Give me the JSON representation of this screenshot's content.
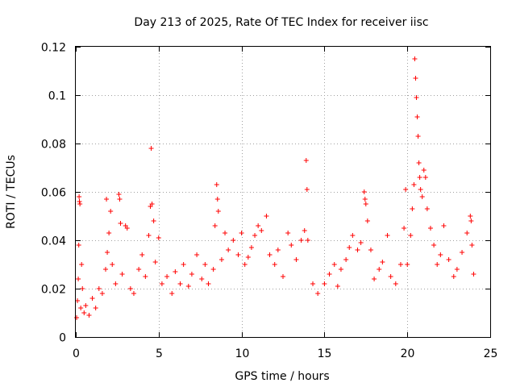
{
  "chart_data": {
    "type": "scatter",
    "title": "Day 213 of 2025, Rate Of TEC Index for receiver iisc",
    "xlabel": "GPS time / hours",
    "ylabel": "ROTI / TECUs",
    "xlim": [
      0,
      25
    ],
    "ylim": [
      0,
      0.12
    ],
    "xticks": [
      0,
      5,
      10,
      15,
      20,
      25
    ],
    "xtick_labels": [
      "0",
      "5",
      "10",
      "15",
      "20",
      "25"
    ],
    "yticks": [
      0,
      0.02,
      0.04,
      0.06,
      0.08,
      0.1,
      0.12
    ],
    "ytick_labels": [
      "0",
      "0.02",
      "0.04",
      "0.06",
      "0.08",
      "0.1",
      "0.12"
    ],
    "grid": true,
    "marker": "+",
    "color": "#ff0000",
    "series": [
      {
        "name": "ROTI",
        "points": [
          [
            0.05,
            0.008
          ],
          [
            0.1,
            0.015
          ],
          [
            0.15,
            0.024
          ],
          [
            0.18,
            0.038
          ],
          [
            0.2,
            0.058
          ],
          [
            0.22,
            0.056
          ],
          [
            0.25,
            0.055
          ],
          [
            0.3,
            0.012
          ],
          [
            0.35,
            0.03
          ],
          [
            0.4,
            0.02
          ],
          [
            0.5,
            0.01
          ],
          [
            0.6,
            0.013
          ],
          [
            0.8,
            0.009
          ],
          [
            1.0,
            0.016
          ],
          [
            1.2,
            0.012
          ],
          [
            1.4,
            0.02
          ],
          [
            1.6,
            0.018
          ],
          [
            1.8,
            0.028
          ],
          [
            1.85,
            0.057
          ],
          [
            1.9,
            0.035
          ],
          [
            2.0,
            0.043
          ],
          [
            2.1,
            0.052
          ],
          [
            2.2,
            0.03
          ],
          [
            2.4,
            0.022
          ],
          [
            2.6,
            0.059
          ],
          [
            2.65,
            0.057
          ],
          [
            2.7,
            0.047
          ],
          [
            2.8,
            0.026
          ],
          [
            3.0,
            0.046
          ],
          [
            3.1,
            0.045
          ],
          [
            3.3,
            0.02
          ],
          [
            3.5,
            0.018
          ],
          [
            3.8,
            0.028
          ],
          [
            4.0,
            0.034
          ],
          [
            4.2,
            0.025
          ],
          [
            4.4,
            0.042
          ],
          [
            4.5,
            0.054
          ],
          [
            4.55,
            0.078
          ],
          [
            4.6,
            0.055
          ],
          [
            4.7,
            0.048
          ],
          [
            4.8,
            0.031
          ],
          [
            5.0,
            0.041
          ],
          [
            5.2,
            0.022
          ],
          [
            5.5,
            0.025
          ],
          [
            5.8,
            0.018
          ],
          [
            6.0,
            0.027
          ],
          [
            6.3,
            0.022
          ],
          [
            6.5,
            0.03
          ],
          [
            6.8,
            0.021
          ],
          [
            7.0,
            0.026
          ],
          [
            7.3,
            0.034
          ],
          [
            7.6,
            0.024
          ],
          [
            7.8,
            0.03
          ],
          [
            8.0,
            0.022
          ],
          [
            8.3,
            0.028
          ],
          [
            8.4,
            0.046
          ],
          [
            8.5,
            0.063
          ],
          [
            8.55,
            0.057
          ],
          [
            8.6,
            0.052
          ],
          [
            8.8,
            0.032
          ],
          [
            9.0,
            0.043
          ],
          [
            9.2,
            0.036
          ],
          [
            9.5,
            0.04
          ],
          [
            9.8,
            0.034
          ],
          [
            10.0,
            0.043
          ],
          [
            10.2,
            0.03
          ],
          [
            10.4,
            0.033
          ],
          [
            10.6,
            0.037
          ],
          [
            10.8,
            0.042
          ],
          [
            11.0,
            0.046
          ],
          [
            11.2,
            0.044
          ],
          [
            11.5,
            0.05
          ],
          [
            11.7,
            0.034
          ],
          [
            12.0,
            0.03
          ],
          [
            12.2,
            0.036
          ],
          [
            12.5,
            0.025
          ],
          [
            12.8,
            0.043
          ],
          [
            13.0,
            0.038
          ],
          [
            13.3,
            0.032
          ],
          [
            13.6,
            0.04
          ],
          [
            13.8,
            0.044
          ],
          [
            13.9,
            0.073
          ],
          [
            13.95,
            0.061
          ],
          [
            14.0,
            0.04
          ],
          [
            14.3,
            0.022
          ],
          [
            14.6,
            0.018
          ],
          [
            15.0,
            0.022
          ],
          [
            15.3,
            0.026
          ],
          [
            15.6,
            0.03
          ],
          [
            15.8,
            0.021
          ],
          [
            16.0,
            0.028
          ],
          [
            16.3,
            0.032
          ],
          [
            16.5,
            0.037
          ],
          [
            16.7,
            0.042
          ],
          [
            17.0,
            0.036
          ],
          [
            17.2,
            0.039
          ],
          [
            17.4,
            0.06
          ],
          [
            17.45,
            0.057
          ],
          [
            17.5,
            0.055
          ],
          [
            17.6,
            0.048
          ],
          [
            17.8,
            0.036
          ],
          [
            18.0,
            0.024
          ],
          [
            18.3,
            0.028
          ],
          [
            18.5,
            0.031
          ],
          [
            18.8,
            0.042
          ],
          [
            19.0,
            0.025
          ],
          [
            19.3,
            0.022
          ],
          [
            19.6,
            0.03
          ],
          [
            19.8,
            0.045
          ],
          [
            19.9,
            0.061
          ],
          [
            20.0,
            0.03
          ],
          [
            20.2,
            0.042
          ],
          [
            20.3,
            0.053
          ],
          [
            20.4,
            0.063
          ],
          [
            20.45,
            0.115
          ],
          [
            20.5,
            0.107
          ],
          [
            20.55,
            0.099
          ],
          [
            20.6,
            0.091
          ],
          [
            20.65,
            0.083
          ],
          [
            20.7,
            0.072
          ],
          [
            20.75,
            0.066
          ],
          [
            20.8,
            0.061
          ],
          [
            20.9,
            0.058
          ],
          [
            21.0,
            0.069
          ],
          [
            21.1,
            0.066
          ],
          [
            21.2,
            0.053
          ],
          [
            21.4,
            0.045
          ],
          [
            21.6,
            0.038
          ],
          [
            21.8,
            0.03
          ],
          [
            22.0,
            0.034
          ],
          [
            22.2,
            0.046
          ],
          [
            22.5,
            0.032
          ],
          [
            22.8,
            0.025
          ],
          [
            23.0,
            0.028
          ],
          [
            23.3,
            0.035
          ],
          [
            23.6,
            0.043
          ],
          [
            23.8,
            0.05
          ],
          [
            23.85,
            0.048
          ],
          [
            23.9,
            0.038
          ],
          [
            24.0,
            0.026
          ]
        ]
      }
    ]
  }
}
